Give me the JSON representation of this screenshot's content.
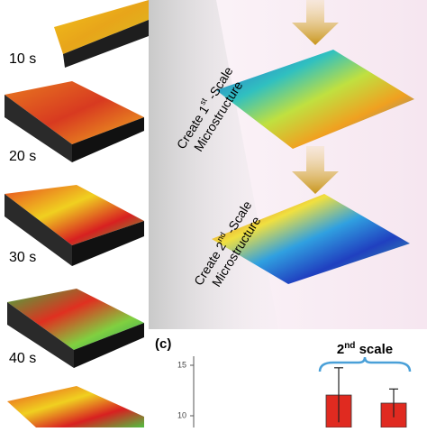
{
  "time_labels": [
    "10 s",
    "20 s",
    "30 s",
    "40 s"
  ],
  "step_1": {
    "prefix": "Create 1",
    "sup": "st",
    "suffix": " -Scale",
    "line2": "Microstructure"
  },
  "step_2": {
    "prefix": "Create 2",
    "sup": "nd",
    "suffix": " -Scale",
    "line2": "Microstructure"
  },
  "panel_c": {
    "label": "(c)",
    "bracket": {
      "prefix": "2",
      "sup": "nd",
      "suffix": " scale"
    },
    "ylim": [
      9,
      16
    ],
    "yticks": [
      10,
      15
    ],
    "values": [
      12.05,
      11.25
    ],
    "errors": [
      2.7,
      1.4
    ],
    "color": "#e02a20"
  }
}
